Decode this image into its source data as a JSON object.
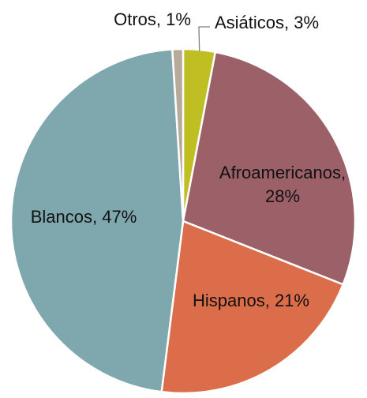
{
  "chart_data": {
    "type": "pie",
    "title": "",
    "slices": [
      {
        "label": "Asiáticos, 3%",
        "category": "Asiáticos",
        "value": 3,
        "color": "#bfbe22"
      },
      {
        "label": "Afroamericanos, 28%",
        "category": "Afroamericanos",
        "value": 28,
        "color": "#9c6068"
      },
      {
        "label": "Hispanos, 21%",
        "category": "Hispanos",
        "value": 21,
        "color": "#db6d4b"
      },
      {
        "label": "Blancos, 47%",
        "category": "Blancos",
        "value": 47,
        "color": "#7fa7ae"
      },
      {
        "label": "Otros, 1%",
        "category": "Otros",
        "value": 1,
        "color": "#b8aa9a"
      }
    ],
    "start": "12 o'clock",
    "direction": "clockwise",
    "legend": "none"
  }
}
